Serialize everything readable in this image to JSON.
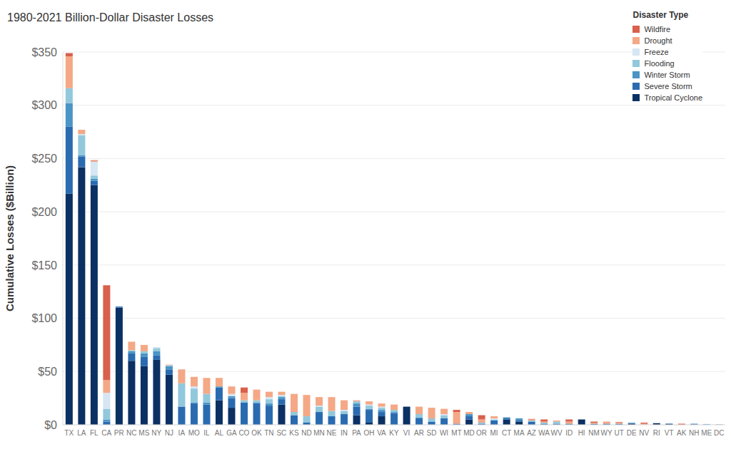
{
  "chart_data": {
    "type": "bar",
    "title": "1980-2021 Billion-Dollar Disaster Losses",
    "y_label": "Cumulative Losses ($Billion)",
    "legend_title": "Disaster Type",
    "legend": "upper right",
    "stacked": true,
    "grid": true,
    "ylim": [
      0,
      350
    ],
    "yticks": [
      {
        "value": 0,
        "label": "$0"
      },
      {
        "value": 50,
        "label": "$50"
      },
      {
        "value": 100,
        "label": "$100"
      },
      {
        "value": 150,
        "label": "$150"
      },
      {
        "value": 200,
        "label": "$200"
      },
      {
        "value": 250,
        "label": "$250"
      },
      {
        "value": 300,
        "label": "$300"
      },
      {
        "value": 350,
        "label": "$350"
      }
    ],
    "categories": [
      "TX",
      "LA",
      "FL",
      "CA",
      "PR",
      "NC",
      "MS",
      "NY",
      "NJ",
      "IA",
      "MO",
      "IL",
      "AL",
      "GA",
      "CO",
      "OK",
      "TN",
      "SC",
      "KS",
      "ND",
      "MN",
      "NE",
      "IN",
      "PA",
      "OH",
      "VA",
      "KY",
      "VI",
      "AR",
      "SD",
      "WI",
      "MT",
      "MD",
      "OR",
      "MI",
      "CT",
      "MA",
      "AZ",
      "WA",
      "WV",
      "ID",
      "HI",
      "NM",
      "WY",
      "UT",
      "DE",
      "NV",
      "RI",
      "VT",
      "AK",
      "NH",
      "ME",
      "DC"
    ],
    "series": [
      {
        "name": "Tropical Cyclone",
        "color": "#0b3063",
        "values": [
          217,
          242,
          225,
          0,
          110,
          60,
          55,
          61,
          47,
          0,
          0,
          0,
          23,
          16,
          0,
          0,
          0,
          19,
          0,
          0,
          0,
          0,
          0,
          9,
          2,
          8,
          0,
          17,
          0,
          0,
          0,
          0,
          5,
          0,
          0,
          5,
          3,
          0,
          0,
          0,
          0,
          5,
          0,
          0,
          0,
          1,
          0,
          1.5,
          1,
          0,
          0.5,
          0,
          0.2
        ]
      },
      {
        "name": "Severe Storm",
        "color": "#2a6bb0",
        "values": [
          63,
          10,
          4,
          3,
          1,
          7,
          9,
          4,
          5,
          17,
          20,
          19,
          12,
          9,
          21,
          20,
          18,
          5,
          9,
          2,
          12,
          8,
          10,
          8,
          12,
          4,
          11,
          0,
          6,
          3,
          6,
          1,
          3,
          1,
          4,
          1,
          1,
          3,
          1,
          1,
          1,
          0,
          1,
          1,
          1,
          0.5,
          0,
          0,
          0,
          0,
          0,
          0.3,
          0
        ]
      },
      {
        "name": "Winter Storm",
        "color": "#4a94c6",
        "values": [
          22,
          1,
          2,
          2,
          0,
          2,
          3,
          4,
          3,
          0,
          1,
          2,
          1,
          2,
          0,
          1,
          2,
          2,
          0,
          0,
          0,
          0,
          0,
          3,
          1,
          2,
          1,
          0,
          1,
          0,
          0,
          0,
          2,
          0,
          0,
          1,
          2,
          0,
          0,
          0,
          0,
          0,
          0,
          0,
          0,
          0.5,
          0,
          0,
          0,
          0,
          0.5,
          0.4,
          0
        ]
      },
      {
        "name": "Flooding",
        "color": "#92c8dc",
        "values": [
          14,
          19,
          3,
          10,
          0,
          1,
          2,
          3,
          1,
          22,
          13,
          8,
          0,
          0,
          2,
          2,
          4,
          1,
          3,
          6,
          5,
          5,
          3,
          2,
          3,
          2,
          2,
          0,
          3,
          3,
          3,
          0,
          0,
          1,
          1,
          0,
          0,
          1,
          1,
          2,
          0,
          0,
          0,
          0,
          0,
          0,
          0,
          0,
          0.5,
          0,
          0.2,
          0,
          0
        ]
      },
      {
        "name": "Freeze",
        "color": "#d6e6f2",
        "values": [
          0,
          1,
          13,
          15,
          0,
          0,
          0,
          1,
          0,
          0,
          2,
          0,
          0,
          2,
          0,
          0,
          2,
          1,
          0,
          0,
          1,
          0,
          1,
          0,
          1,
          1,
          0,
          0,
          0,
          0,
          1,
          0,
          0,
          0,
          1,
          0,
          0,
          0,
          0,
          0,
          0,
          0,
          0,
          0,
          0,
          0,
          0,
          0,
          0,
          0,
          0,
          0,
          0
        ]
      },
      {
        "name": "Drought",
        "color": "#f4a886",
        "values": [
          30,
          4,
          1,
          12,
          0,
          8,
          6,
          0,
          0.5,
          13,
          9,
          15,
          8,
          7,
          7,
          10,
          5,
          3,
          17,
          20,
          8,
          13,
          9,
          1,
          3,
          3,
          5,
          0,
          7,
          10,
          5,
          11,
          2,
          3,
          2,
          0,
          0,
          1,
          1,
          1,
          2,
          0,
          1,
          2,
          1,
          0,
          1,
          0,
          0,
          0,
          0,
          0,
          0
        ]
      },
      {
        "name": "Wildfire",
        "color": "#d8604c",
        "values": [
          3,
          0,
          0.5,
          89,
          0,
          0,
          0,
          0,
          0,
          0,
          0,
          0,
          0,
          0,
          5,
          0,
          0,
          0,
          0,
          0,
          0,
          0,
          0,
          0,
          0,
          0,
          0,
          0,
          0,
          0,
          0,
          2,
          0,
          4,
          0,
          0,
          0,
          0.5,
          2,
          0,
          2,
          0,
          1,
          0,
          0.5,
          0,
          1,
          0,
          0,
          1,
          0,
          0,
          0
        ]
      }
    ]
  }
}
